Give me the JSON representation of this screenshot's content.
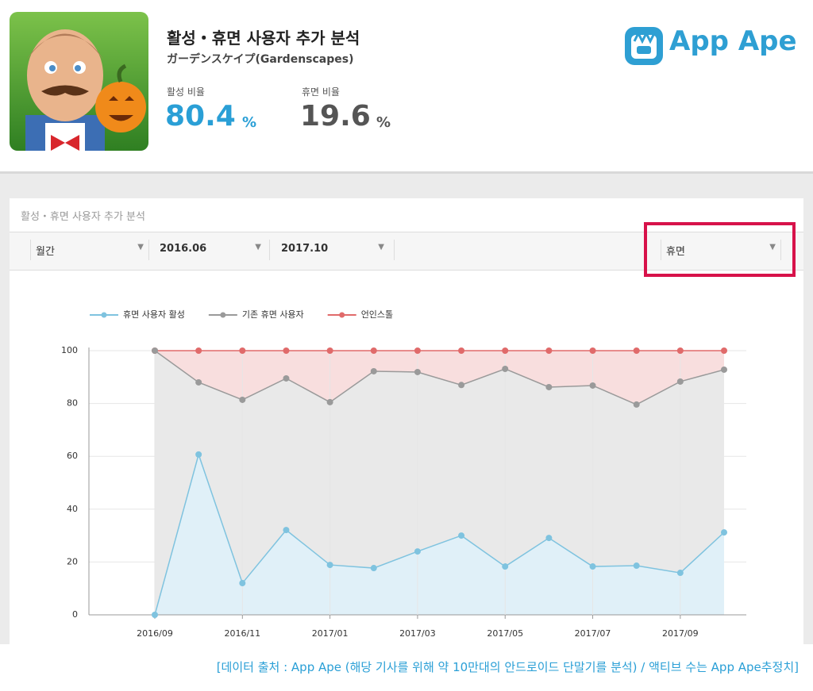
{
  "header": {
    "title": "활성・휴면 사용자 추가 분석",
    "subtitle": "ガーデンスケイプ(Gardenscapes)",
    "active_label": "활성 비율",
    "active_value": 80.4,
    "active_unit": "%",
    "dormant_label": "휴면 비율",
    "dormant_value": 19.6,
    "dormant_unit": "%",
    "logo": "App Ape"
  },
  "panel": {
    "title": "활성・휴면 사용자 추가 분석",
    "period": "월간",
    "start": "2016.06",
    "end": "2017.10",
    "mode": "휴면"
  },
  "chart_data": {
    "type": "area",
    "categories": [
      "2016/09",
      null,
      "2016/11",
      null,
      "2017/01",
      null,
      "2017/03",
      null,
      "2017/05",
      null,
      "2017/07",
      null,
      "2017/09",
      null
    ],
    "series": [
      {
        "name": "언인스톨",
        "color": "#e06a6a",
        "fill": "#f8dede",
        "values": [
          100,
          100,
          100,
          100,
          100,
          100,
          100,
          100,
          100,
          100,
          100,
          100,
          100,
          100
        ]
      },
      {
        "name": "기존 휴면 사용자",
        "color": "#9a9a9a",
        "fill": "#e9e9e9",
        "values": [
          100,
          88,
          81.4,
          89.5,
          80.5,
          92.2,
          91.9,
          87,
          93.1,
          86.2,
          86.8,
          79.6,
          88.3,
          92.8
        ]
      },
      {
        "name": "휴면 사용자 활성",
        "color": "#7fc3df",
        "fill": "#e0f0f8",
        "values": [
          0,
          60.7,
          12,
          32.1,
          18.9,
          17.7,
          24,
          30,
          18.3,
          29.1,
          18.3,
          18.6,
          15.9,
          31.2
        ]
      }
    ],
    "legend_order": [
      2,
      1,
      0
    ],
    "ylim": [
      0,
      100
    ],
    "yticks": [
      0,
      20,
      40,
      60,
      80,
      100
    ],
    "grid": true
  },
  "footer": "[데이터 출처 : App Ape (해당 기사를 위해 약 10만대의 안드로이드 단말기를 분석) / 액티브 수는 App Ape추정치]"
}
